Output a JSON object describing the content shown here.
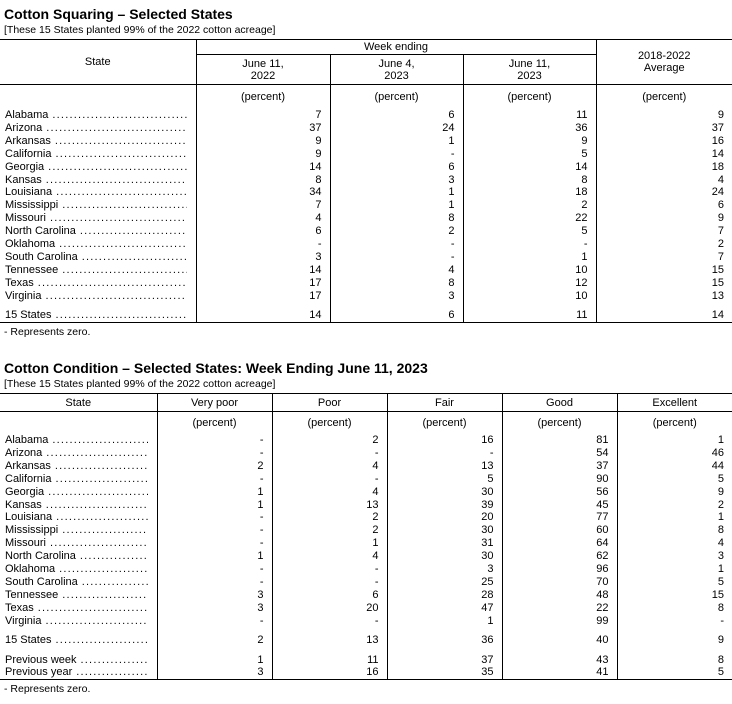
{
  "squaring": {
    "title": "Cotton Squaring – Selected States",
    "note": "[These 15 States planted 99% of the 2022 cotton acreage]",
    "header": {
      "state_label": "State",
      "group_label": "Week ending",
      "week1": "June 11,\n2022",
      "week2": "June 4,\n2023",
      "week3": "June 11,\n2023",
      "avg_label": "2018-2022\nAverage",
      "unit": "(percent)"
    },
    "rows": [
      {
        "cells": [
          "Alabama",
          "7",
          "6",
          "11",
          "9"
        ]
      },
      {
        "cells": [
          "Arizona",
          "37",
          "24",
          "36",
          "37"
        ]
      },
      {
        "cells": [
          "Arkansas",
          "9",
          "1",
          "9",
          "16"
        ]
      },
      {
        "cells": [
          "California",
          "9",
          "-",
          "5",
          "14"
        ]
      },
      {
        "cells": [
          "Georgia",
          "14",
          "6",
          "14",
          "18"
        ]
      },
      {
        "cells": [
          "Kansas",
          "8",
          "3",
          "8",
          "4"
        ]
      },
      {
        "cells": [
          "Louisiana",
          "34",
          "1",
          "18",
          "24"
        ]
      },
      {
        "cells": [
          "Mississippi",
          "7",
          "1",
          "2",
          "6"
        ]
      },
      {
        "cells": [
          "Missouri",
          "4",
          "8",
          "22",
          "9"
        ]
      },
      {
        "cells": [
          "North Carolina",
          "6",
          "2",
          "5",
          "7"
        ]
      },
      {
        "cells": [
          "Oklahoma",
          "-",
          "-",
          "-",
          "2"
        ]
      },
      {
        "cells": [
          "South Carolina",
          "3",
          "-",
          "1",
          "7"
        ]
      },
      {
        "cells": [
          "Tennessee",
          "14",
          "4",
          "10",
          "15"
        ]
      },
      {
        "cells": [
          "Texas",
          "17",
          "8",
          "12",
          "15"
        ]
      },
      {
        "cells": [
          "Virginia",
          "17",
          "3",
          "10",
          "13"
        ]
      },
      {
        "spacer": true
      },
      {
        "cells": [
          "15 States",
          "14",
          "6",
          "11",
          "14"
        ]
      }
    ],
    "footnote": "- Represents zero."
  },
  "condition": {
    "title": "Cotton Condition – Selected States: Week Ending June 11, 2023",
    "note": "[These 15 States planted 99% of the 2022 cotton acreage]",
    "header": {
      "columns": [
        "State",
        "Very poor",
        "Poor",
        "Fair",
        "Good",
        "Excellent"
      ],
      "unit": "(percent)"
    },
    "rows": [
      {
        "cells": [
          "Alabama",
          "-",
          "2",
          "16",
          "81",
          "1"
        ]
      },
      {
        "cells": [
          "Arizona",
          "-",
          "-",
          "-",
          "54",
          "46"
        ]
      },
      {
        "cells": [
          "Arkansas",
          "2",
          "4",
          "13",
          "37",
          "44"
        ]
      },
      {
        "cells": [
          "California",
          "-",
          "-",
          "5",
          "90",
          "5"
        ]
      },
      {
        "cells": [
          "Georgia",
          "1",
          "4",
          "30",
          "56",
          "9"
        ]
      },
      {
        "cells": [
          "Kansas",
          "1",
          "13",
          "39",
          "45",
          "2"
        ]
      },
      {
        "cells": [
          "Louisiana",
          "-",
          "2",
          "20",
          "77",
          "1"
        ]
      },
      {
        "cells": [
          "Mississippi",
          "-",
          "2",
          "30",
          "60",
          "8"
        ]
      },
      {
        "cells": [
          "Missouri",
          "-",
          "1",
          "31",
          "64",
          "4"
        ]
      },
      {
        "cells": [
          "North Carolina",
          "1",
          "4",
          "30",
          "62",
          "3"
        ]
      },
      {
        "cells": [
          "Oklahoma",
          "-",
          "-",
          "3",
          "96",
          "1"
        ]
      },
      {
        "cells": [
          "South Carolina",
          "-",
          "-",
          "25",
          "70",
          "5"
        ]
      },
      {
        "cells": [
          "Tennessee",
          "3",
          "6",
          "28",
          "48",
          "15"
        ]
      },
      {
        "cells": [
          "Texas",
          "3",
          "20",
          "47",
          "22",
          "8"
        ]
      },
      {
        "cells": [
          "Virginia",
          "-",
          "-",
          "1",
          "99",
          "-"
        ]
      },
      {
        "spacer": true
      },
      {
        "cells": [
          "15 States",
          "2",
          "13",
          "36",
          "40",
          "9"
        ]
      },
      {
        "spacer": true
      },
      {
        "cells": [
          "Previous week",
          "1",
          "11",
          "37",
          "43",
          "8"
        ]
      },
      {
        "cells": [
          "Previous year",
          "3",
          "16",
          "35",
          "41",
          "5"
        ]
      }
    ],
    "footnote": "- Represents zero."
  }
}
